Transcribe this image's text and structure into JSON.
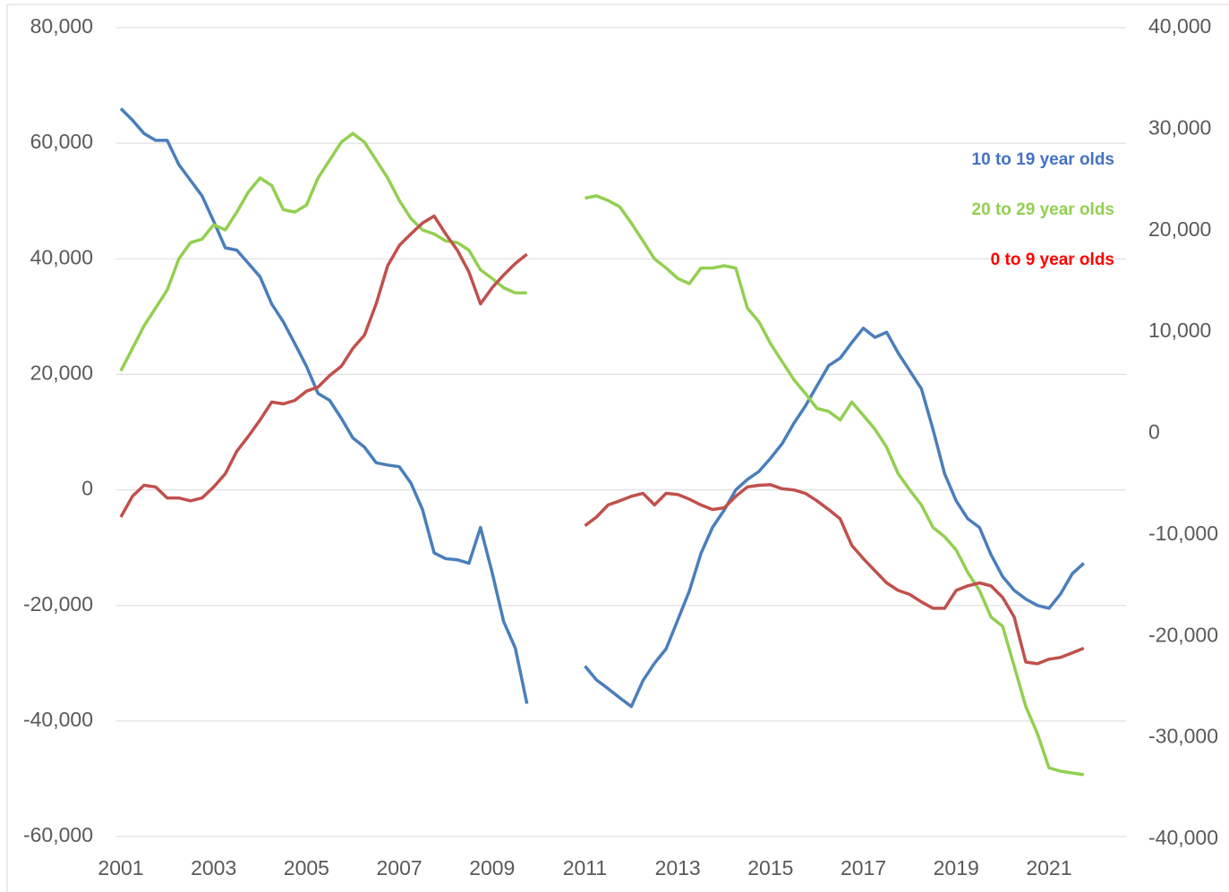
{
  "chart_data": {
    "type": "line",
    "x": [
      2001,
      2001.25,
      2001.5,
      2001.75,
      2002,
      2002.25,
      2002.5,
      2002.75,
      2003,
      2003.25,
      2003.5,
      2003.75,
      2004,
      2004.25,
      2004.5,
      2004.75,
      2005,
      2005.25,
      2005.5,
      2005.75,
      2006,
      2006.25,
      2006.5,
      2006.75,
      2007,
      2007.25,
      2007.5,
      2007.75,
      2008,
      2008.25,
      2008.5,
      2008.75,
      2009,
      2009.25,
      2009.5,
      2009.75,
      2010.5,
      2011,
      2011.25,
      2011.5,
      2011.75,
      2012,
      2012.25,
      2012.5,
      2012.75,
      2013,
      2013.25,
      2013.5,
      2013.75,
      2014,
      2014.25,
      2014.5,
      2014.75,
      2015,
      2015.25,
      2015.5,
      2015.75,
      2016,
      2016.25,
      2016.5,
      2016.75,
      2017,
      2017.25,
      2017.5,
      2017.75,
      2018,
      2018.25,
      2018.5,
      2018.75,
      2019,
      2019.25,
      2019.5,
      2019.75,
      2020,
      2020.25,
      2020.5,
      2020.75,
      2021,
      2021.25,
      2021.5,
      2021.75
    ],
    "series": [
      {
        "name": "10 to 19 year olds",
        "color": "#4a7ebb",
        "legend_color": "#4472c4",
        "values": [
          66000,
          64000,
          61700,
          60500,
          60500,
          56300,
          53600,
          50900,
          46500,
          41900,
          41500,
          39200,
          36900,
          32200,
          29100,
          25300,
          21400,
          16700,
          15500,
          12400,
          9000,
          7400,
          4700,
          4300,
          4000,
          1200,
          -3400,
          -10900,
          -11900,
          -12100,
          -12700,
          -6500,
          -14300,
          -22800,
          -27400,
          -37000,
          null,
          -30500,
          -32900,
          -34400,
          -36000,
          -37500,
          -33000,
          -30000,
          -27500,
          -22500,
          -17500,
          -11000,
          -6500,
          -3500,
          0,
          1800,
          3200,
          5500,
          8000,
          11500,
          14500,
          18000,
          21500,
          22800,
          25500,
          28000,
          26400,
          27300,
          23700,
          20600,
          17500,
          10500,
          2800,
          -1900,
          -5000,
          -6500,
          -11200,
          -15000,
          -17400,
          -18900,
          -20000,
          -20500,
          -18000,
          -14500,
          -12700
        ]
      },
      {
        "name": "20 to 29 year olds",
        "color": "#92d050",
        "legend_color": "#92d050",
        "values": [
          20600,
          24500,
          28400,
          31500,
          34600,
          40000,
          42800,
          43400,
          45900,
          45000,
          48100,
          51600,
          54000,
          52700,
          48500,
          48100,
          49300,
          54000,
          57100,
          60200,
          61700,
          60200,
          57100,
          54000,
          50100,
          47000,
          45000,
          44300,
          43100,
          42800,
          41500,
          38100,
          36600,
          35000,
          34100,
          34100,
          null,
          50500,
          50900,
          50100,
          49000,
          46200,
          43100,
          40000,
          38400,
          36600,
          35700,
          38400,
          38400,
          38800,
          38400,
          31500,
          29100,
          25300,
          22200,
          19100,
          16700,
          14100,
          13600,
          12100,
          15200,
          12900,
          10500,
          7400,
          2800,
          0,
          -2600,
          -6500,
          -8100,
          -10400,
          -14300,
          -17400,
          -22000,
          -23600,
          -30500,
          -37500,
          -42200,
          -48100,
          -48700,
          -49000,
          -49300
        ]
      },
      {
        "name": "0 to 9 year olds",
        "color": "#c0504d",
        "legend_color": "#ff0000",
        "values": [
          -4700,
          -1100,
          800,
          500,
          -1400,
          -1400,
          -1900,
          -1400,
          500,
          2800,
          6700,
          9300,
          12100,
          15200,
          14900,
          15500,
          17100,
          17800,
          19800,
          21400,
          24500,
          26800,
          32200,
          38800,
          42300,
          44300,
          46200,
          47400,
          44300,
          41500,
          37700,
          32200,
          35000,
          37200,
          39200,
          40800,
          null,
          -6200,
          -4700,
          -2600,
          -1900,
          -1100,
          -600,
          -2600,
          -600,
          -800,
          -1600,
          -2600,
          -3400,
          -3100,
          -1100,
          500,
          800,
          900,
          200,
          0,
          -600,
          -1900,
          -3400,
          -5000,
          -9600,
          -11900,
          -14000,
          -16100,
          -17400,
          -18100,
          -19400,
          -20500,
          -20500,
          -17400,
          -16600,
          -16100,
          -16600,
          -18600,
          -22000,
          -29800,
          -30100,
          -29300,
          -29000,
          -28200,
          -27400
        ]
      }
    ],
    "xlim": [
      2001,
      2022.66
    ],
    "xticks": [
      2001,
      2003,
      2005,
      2007,
      2009,
      2011,
      2013,
      2015,
      2017,
      2019,
      2021
    ],
    "ylim": [
      -60000,
      80000
    ],
    "yticks": [
      {
        "value": -60000,
        "label": "-60,000"
      },
      {
        "value": -40000,
        "label": "-40,000"
      },
      {
        "value": -20000,
        "label": "-20,000"
      },
      0,
      {
        "value": 20000,
        "label": "20,000"
      },
      {
        "value": 40000,
        "label": "40,000"
      },
      {
        "value": 60000,
        "label": "60,000"
      },
      {
        "value": 80000,
        "label": "80,000"
      }
    ],
    "y2lim": [
      -40000,
      40000
    ],
    "y2ticks": [
      {
        "value": -40000,
        "label": "-40,000"
      },
      {
        "value": -30000,
        "label": "-30,000"
      },
      {
        "value": -20000,
        "label": "-20,000"
      },
      {
        "value": -10000,
        "label": "-10,000"
      },
      0,
      {
        "value": 10000,
        "label": "10,000"
      },
      {
        "value": 20000,
        "label": "20,000"
      },
      {
        "value": 30000,
        "label": "30,000"
      },
      {
        "value": 40000,
        "label": "40,000"
      }
    ],
    "grid": true
  }
}
